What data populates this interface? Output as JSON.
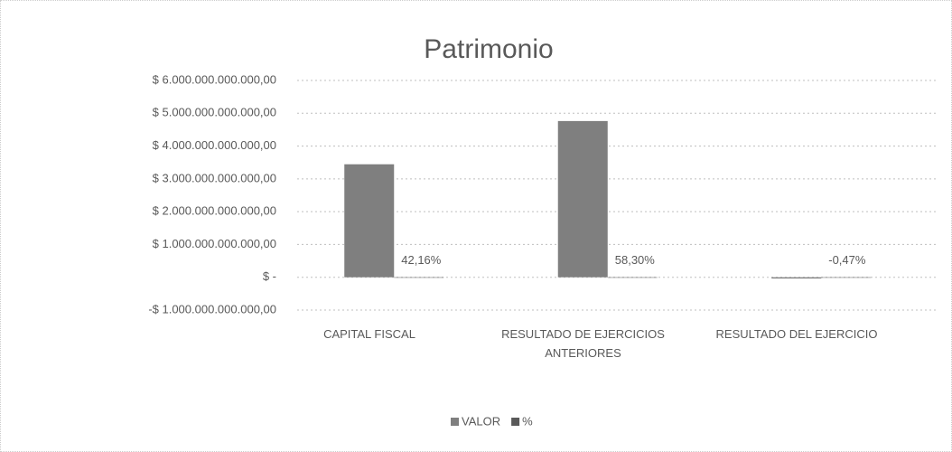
{
  "chart_data": {
    "type": "bar",
    "title": "Patrimonio",
    "categories": [
      "CAPITAL FISCAL",
      "RESULTADO DE EJERCICIOS ANTERIORES",
      "RESULTADO DEL EJERCICIO"
    ],
    "series": [
      {
        "name": "VALOR",
        "color": "#7f7f7f",
        "values": [
          3445000000000,
          4763000000000,
          -38000000000
        ]
      },
      {
        "name": "%",
        "color": "#595959",
        "values": [
          42.16,
          58.3,
          -0.47
        ],
        "value_labels": [
          "42,16%",
          "58,30%",
          "-0,47%"
        ]
      }
    ],
    "ylim": [
      -1000000000000,
      6000000000000
    ],
    "yticks": [
      {
        "value": -1000000000000,
        "label": "-$ 1.000.000.000.000,00"
      },
      {
        "value": 0,
        "label": "$ -"
      },
      {
        "value": 1000000000000,
        "label": "$ 1.000.000.000.000,00"
      },
      {
        "value": 2000000000000,
        "label": "$ 2.000.000.000.000,00"
      },
      {
        "value": 3000000000000,
        "label": "$ 3.000.000.000.000,00"
      },
      {
        "value": 4000000000000,
        "label": "$ 4.000.000.000.000,00"
      },
      {
        "value": 5000000000000,
        "label": "$ 5.000.000.000.000,00"
      },
      {
        "value": 6000000000000,
        "label": "$ 6.000.000.000.000,00"
      }
    ],
    "grid": true,
    "legend": "bottom"
  }
}
